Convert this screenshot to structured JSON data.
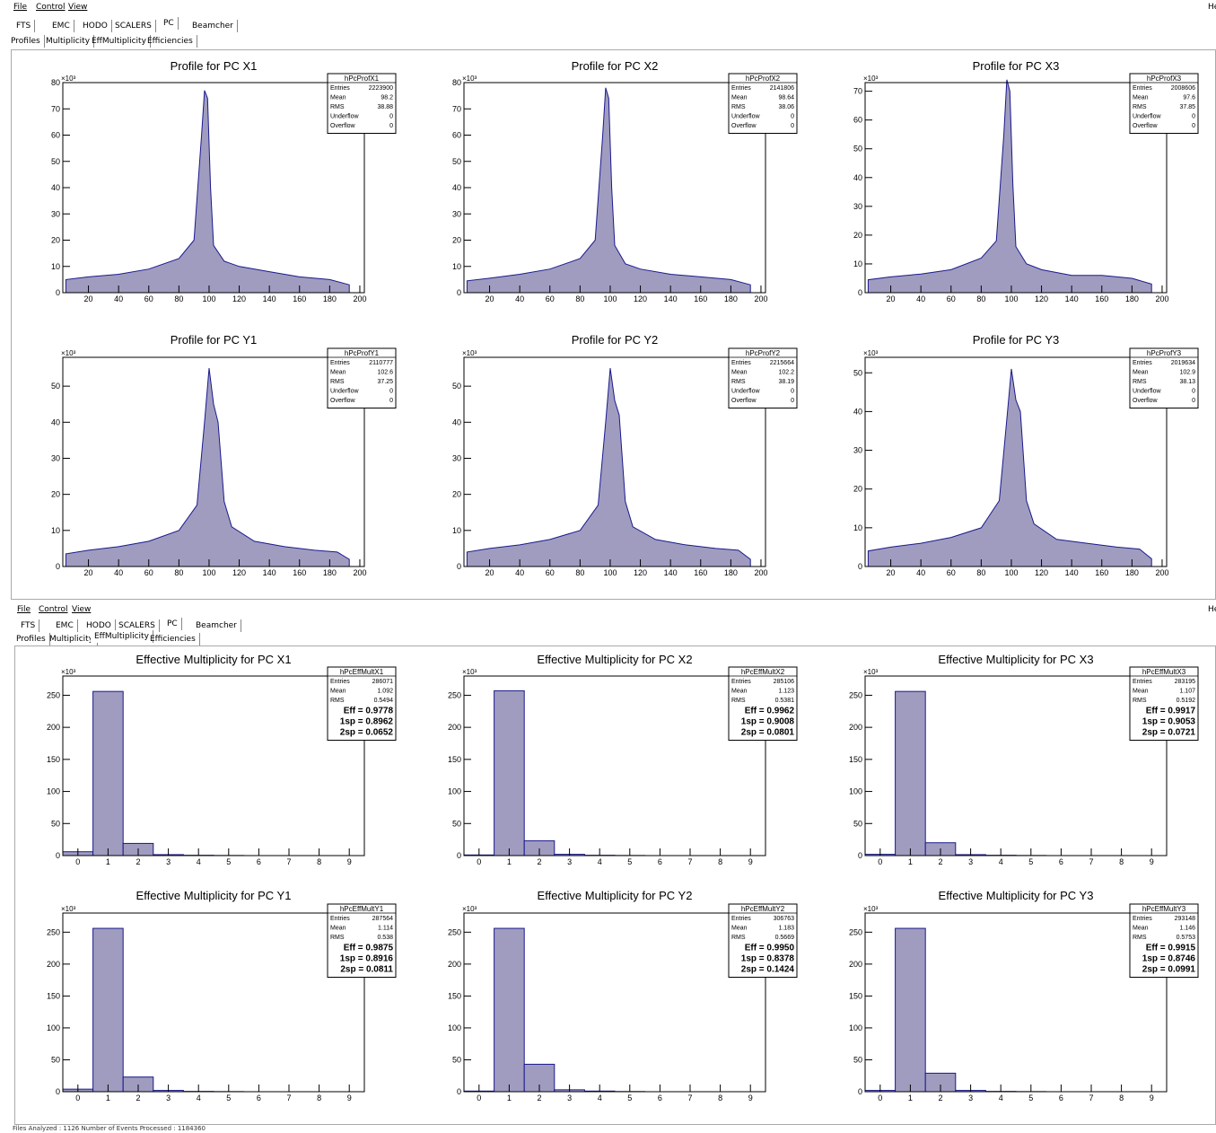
{
  "menu": {
    "file": "File",
    "control": "Control",
    "view": "View",
    "right": "He"
  },
  "detector_tabs": [
    "FTS",
    "EMC",
    "HODO",
    "SCALERS",
    "PC",
    "Beamcher"
  ],
  "view_tabs": [
    "Profiles",
    "Multiplicity",
    "EffMultiplicity",
    "Efficiencies"
  ],
  "windows": [
    {
      "selected_view": "Profiles"
    },
    {
      "selected_view": "EffMultiplicity"
    }
  ],
  "status": {
    "text": "Files Analyzed  :   1126   Number of Events Processed  :   1184360"
  },
  "colors": {
    "fill": "#a09cc0",
    "line": "#1a1a8c"
  },
  "chart_data": [
    {
      "type": "bar",
      "title": "Profile for PC X1",
      "exponent": "×10³",
      "ylim": [
        0,
        80
      ],
      "yticks": [
        0,
        10,
        20,
        30,
        40,
        50,
        60,
        70,
        80
      ],
      "xlim": [
        3,
        203
      ],
      "xticks": [
        20,
        40,
        60,
        80,
        100,
        120,
        140,
        160,
        180,
        200
      ],
      "x": [
        5,
        20,
        40,
        60,
        80,
        90,
        95,
        97,
        99,
        101,
        103,
        110,
        120,
        140,
        160,
        180,
        193
      ],
      "y": [
        5,
        6,
        7,
        9,
        13,
        20,
        60,
        77,
        74,
        40,
        18,
        12,
        10,
        8,
        6,
        5,
        3
      ],
      "stats": {
        "name": "hPcProfX1",
        "rows": [
          [
            "Entries",
            "2223900"
          ],
          [
            "Mean",
            "98.2"
          ],
          [
            "RMS",
            "38.88"
          ],
          [
            "Underflow",
            "0"
          ],
          [
            "Overflow",
            "0"
          ]
        ]
      }
    },
    {
      "type": "bar",
      "title": "Profile for PC X2",
      "exponent": "×10³",
      "ylim": [
        0,
        80
      ],
      "yticks": [
        0,
        10,
        20,
        30,
        40,
        50,
        60,
        70,
        80
      ],
      "xlim": [
        3,
        203
      ],
      "xticks": [
        20,
        40,
        60,
        80,
        100,
        120,
        140,
        160,
        180,
        200
      ],
      "x": [
        5,
        20,
        40,
        60,
        80,
        90,
        95,
        97,
        99,
        101,
        103,
        110,
        120,
        140,
        160,
        180,
        193
      ],
      "y": [
        4.5,
        5.5,
        7,
        9,
        13,
        20,
        60,
        78,
        74,
        40,
        18,
        11,
        9,
        7,
        6,
        5,
        3
      ],
      "stats": {
        "name": "hPcProfX2",
        "rows": [
          [
            "Entries",
            "2141806"
          ],
          [
            "Mean",
            "98.64"
          ],
          [
            "RMS",
            "38.06"
          ],
          [
            "Underflow",
            "0"
          ],
          [
            "Overflow",
            "0"
          ]
        ]
      }
    },
    {
      "type": "bar",
      "title": "Profile for PC X3",
      "exponent": "×10³",
      "ylim": [
        0,
        73
      ],
      "yticks": [
        0,
        10,
        20,
        30,
        40,
        50,
        60,
        70
      ],
      "xlim": [
        3,
        203
      ],
      "xticks": [
        20,
        40,
        60,
        80,
        100,
        120,
        140,
        160,
        180,
        200
      ],
      "x": [
        5,
        20,
        40,
        60,
        80,
        90,
        95,
        97,
        99,
        101,
        103,
        110,
        120,
        140,
        160,
        180,
        193
      ],
      "y": [
        4.5,
        5.5,
        6.5,
        8,
        12,
        18,
        55,
        74,
        70,
        38,
        16,
        10,
        8,
        6,
        6,
        5,
        3
      ],
      "stats": {
        "name": "hPcProfX3",
        "rows": [
          [
            "Entries",
            "2008606"
          ],
          [
            "Mean",
            "97.6"
          ],
          [
            "RMS",
            "37.85"
          ],
          [
            "Underflow",
            "0"
          ],
          [
            "Overflow",
            "0"
          ]
        ]
      }
    },
    {
      "type": "bar",
      "title": "Profile for PC Y1",
      "exponent": "×10³",
      "ylim": [
        0,
        58
      ],
      "yticks": [
        0,
        10,
        20,
        30,
        40,
        50
      ],
      "xlim": [
        3,
        203
      ],
      "xticks": [
        20,
        40,
        60,
        80,
        100,
        120,
        140,
        160,
        180,
        200
      ],
      "x": [
        5,
        20,
        40,
        60,
        80,
        92,
        97,
        100,
        103,
        106,
        110,
        115,
        130,
        150,
        170,
        185,
        193
      ],
      "y": [
        3.5,
        4.5,
        5.5,
        7,
        10,
        17,
        40,
        55,
        45,
        40,
        18,
        11,
        7,
        5.5,
        4.5,
        4,
        2
      ],
      "stats": {
        "name": "hPcProfY1",
        "rows": [
          [
            "Entries",
            "2110777"
          ],
          [
            "Mean",
            "102.6"
          ],
          [
            "RMS",
            "37.25"
          ],
          [
            "Underflow",
            "0"
          ],
          [
            "Overflow",
            "0"
          ]
        ]
      }
    },
    {
      "type": "bar",
      "title": "Profile for PC Y2",
      "exponent": "×10³",
      "ylim": [
        0,
        58
      ],
      "yticks": [
        0,
        10,
        20,
        30,
        40,
        50
      ],
      "xlim": [
        3,
        203
      ],
      "xticks": [
        20,
        40,
        60,
        80,
        100,
        120,
        140,
        160,
        180,
        200
      ],
      "x": [
        5,
        20,
        40,
        60,
        80,
        92,
        97,
        100,
        103,
        106,
        110,
        115,
        130,
        150,
        170,
        185,
        193
      ],
      "y": [
        4,
        5,
        6,
        7.5,
        10,
        17,
        40,
        55,
        46,
        42,
        18,
        11,
        7.5,
        6,
        5,
        4.5,
        2
      ],
      "stats": {
        "name": "hPcProfY2",
        "rows": [
          [
            "Entries",
            "2215664"
          ],
          [
            "Mean",
            "102.2"
          ],
          [
            "RMS",
            "38.19"
          ],
          [
            "Underflow",
            "0"
          ],
          [
            "Overflow",
            "0"
          ]
        ]
      }
    },
    {
      "type": "bar",
      "title": "Profile for PC Y3",
      "exponent": "×10³",
      "ylim": [
        0,
        54
      ],
      "yticks": [
        0,
        10,
        20,
        30,
        40,
        50
      ],
      "xlim": [
        3,
        203
      ],
      "xticks": [
        20,
        40,
        60,
        80,
        100,
        120,
        140,
        160,
        180,
        200
      ],
      "x": [
        5,
        20,
        40,
        60,
        80,
        92,
        97,
        100,
        103,
        106,
        110,
        115,
        130,
        150,
        170,
        185,
        193
      ],
      "y": [
        4,
        5,
        6,
        7.5,
        10,
        17,
        38,
        51,
        43,
        40,
        17,
        11,
        7,
        6,
        5,
        4.5,
        2
      ],
      "stats": {
        "name": "hPcProfY3",
        "rows": [
          [
            "Entries",
            "2019634"
          ],
          [
            "Mean",
            "102.9"
          ],
          [
            "RMS",
            "38.13"
          ],
          [
            "Underflow",
            "0"
          ],
          [
            "Overflow",
            "0"
          ]
        ]
      }
    },
    {
      "type": "bar",
      "title": "Effective Multiplicity for PC X1",
      "exponent": "×10³",
      "ylim": [
        0,
        280
      ],
      "yticks": [
        0,
        50,
        100,
        150,
        200,
        250
      ],
      "xlim": [
        -0.5,
        9.5
      ],
      "xticks": [
        0,
        1,
        2,
        3,
        4,
        5,
        6,
        7,
        8,
        9
      ],
      "categories": [
        0,
        1,
        2,
        3,
        4,
        5,
        6,
        7,
        8,
        9
      ],
      "values": [
        6,
        256,
        19,
        1.5,
        0.5,
        0.2,
        0,
        0,
        0,
        0
      ],
      "stats": {
        "name": "hPcEffMultX1",
        "rows": [
          [
            "Entries",
            "286071"
          ],
          [
            "Mean",
            "1.092"
          ],
          [
            "RMS",
            "0.5494"
          ]
        ],
        "bold": [
          "Eff = 0.9778",
          "1sp = 0.8962",
          "2sp = 0.0652"
        ]
      }
    },
    {
      "type": "bar",
      "title": "Effective Multiplicity for PC X2",
      "exponent": "×10³",
      "ylim": [
        0,
        280
      ],
      "yticks": [
        0,
        50,
        100,
        150,
        200,
        250
      ],
      "xlim": [
        -0.5,
        9.5
      ],
      "xticks": [
        0,
        1,
        2,
        3,
        4,
        5,
        6,
        7,
        8,
        9
      ],
      "categories": [
        0,
        1,
        2,
        3,
        4,
        5,
        6,
        7,
        8,
        9
      ],
      "values": [
        1,
        257,
        23,
        2,
        0.5,
        0.2,
        0,
        0,
        0,
        0
      ],
      "stats": {
        "name": "hPcEffMultX2",
        "rows": [
          [
            "Entries",
            "285106"
          ],
          [
            "Mean",
            "1.123"
          ],
          [
            "RMS",
            "0.5381"
          ]
        ],
        "bold": [
          "Eff = 0.9962",
          "1sp = 0.9008",
          "2sp = 0.0801"
        ]
      }
    },
    {
      "type": "bar",
      "title": "Effective Multiplicity for PC X3",
      "exponent": "×10³",
      "ylim": [
        0,
        280
      ],
      "yticks": [
        0,
        50,
        100,
        150,
        200,
        250
      ],
      "xlim": [
        -0.5,
        9.5
      ],
      "xticks": [
        0,
        1,
        2,
        3,
        4,
        5,
        6,
        7,
        8,
        9
      ],
      "categories": [
        0,
        1,
        2,
        3,
        4,
        5,
        6,
        7,
        8,
        9
      ],
      "values": [
        2,
        256,
        20,
        1.5,
        0.5,
        0.2,
        0,
        0,
        0,
        0
      ],
      "stats": {
        "name": "hPcEffMultX3",
        "rows": [
          [
            "Entries",
            "283195"
          ],
          [
            "Mean",
            "1.107"
          ],
          [
            "RMS",
            "0.5192"
          ]
        ],
        "bold": [
          "Eff = 0.9917",
          "1sp = 0.9053",
          "2sp = 0.0721"
        ]
      }
    },
    {
      "type": "bar",
      "title": "Effective Multiplicity for PC Y1",
      "exponent": "×10³",
      "ylim": [
        0,
        280
      ],
      "yticks": [
        0,
        50,
        100,
        150,
        200,
        250
      ],
      "xlim": [
        -0.5,
        9.5
      ],
      "xticks": [
        0,
        1,
        2,
        3,
        4,
        5,
        6,
        7,
        8,
        9
      ],
      "categories": [
        0,
        1,
        2,
        3,
        4,
        5,
        6,
        7,
        8,
        9
      ],
      "values": [
        4,
        256,
        23,
        2,
        0.5,
        0.2,
        0,
        0,
        0,
        0
      ],
      "stats": {
        "name": "hPcEffMultY1",
        "rows": [
          [
            "Entries",
            "287564"
          ],
          [
            "Mean",
            "1.114"
          ],
          [
            "RMS",
            "0.538"
          ]
        ],
        "bold": [
          "Eff = 0.9875",
          "1sp = 0.8916",
          "2sp = 0.0811"
        ]
      }
    },
    {
      "type": "bar",
      "title": "Effective Multiplicity for PC Y2",
      "exponent": "×10³",
      "ylim": [
        0,
        280
      ],
      "yticks": [
        0,
        50,
        100,
        150,
        200,
        250
      ],
      "xlim": [
        -0.5,
        9.5
      ],
      "xticks": [
        0,
        1,
        2,
        3,
        4,
        5,
        6,
        7,
        8,
        9
      ],
      "categories": [
        0,
        1,
        2,
        3,
        4,
        5,
        6,
        7,
        8,
        9
      ],
      "values": [
        1,
        256,
        43,
        3,
        1,
        0.3,
        0,
        0,
        0,
        0
      ],
      "stats": {
        "name": "hPcEffMultY2",
        "rows": [
          [
            "Entries",
            "306763"
          ],
          [
            "Mean",
            "1.183"
          ],
          [
            "RMS",
            "0.5669"
          ]
        ],
        "bold": [
          "Eff = 0.9950",
          "1sp = 0.8378",
          "2sp = 0.1424"
        ]
      }
    },
    {
      "type": "bar",
      "title": "Effective Multiplicity for PC Y3",
      "exponent": "×10³",
      "ylim": [
        0,
        280
      ],
      "yticks": [
        0,
        50,
        100,
        150,
        200,
        250
      ],
      "xlim": [
        -0.5,
        9.5
      ],
      "xticks": [
        0,
        1,
        2,
        3,
        4,
        5,
        6,
        7,
        8,
        9
      ],
      "categories": [
        0,
        1,
        2,
        3,
        4,
        5,
        6,
        7,
        8,
        9
      ],
      "values": [
        2,
        256,
        29,
        2,
        0.5,
        0.2,
        0,
        0,
        0,
        0
      ],
      "stats": {
        "name": "hPcEffMultY3",
        "rows": [
          [
            "Entries",
            "293148"
          ],
          [
            "Mean",
            "1.146"
          ],
          [
            "RMS",
            "0.5753"
          ]
        ],
        "bold": [
          "Eff = 0.9915",
          "1sp = 0.8746",
          "2sp = 0.0991"
        ]
      }
    }
  ]
}
